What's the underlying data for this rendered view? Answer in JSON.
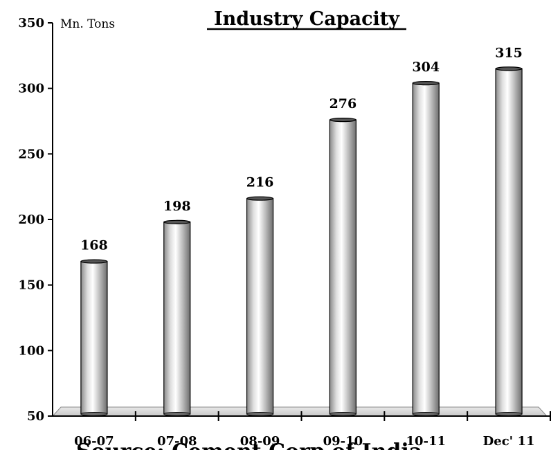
{
  "chart_data": {
    "type": "bar",
    "title": "Industry Capacity",
    "unit_label": "Mn. Tons",
    "categories": [
      "06-07",
      "07-08",
      "08-09",
      "09-10",
      "10-11",
      "Dec' 11"
    ],
    "values": [
      168,
      198,
      216,
      276,
      304,
      315
    ],
    "yticks": [
      50,
      100,
      150,
      200,
      250,
      300,
      350
    ],
    "ylim": [
      50,
      350
    ],
    "xlabel": "",
    "ylabel": "",
    "grid": false,
    "bar_style": "3d-cylinder-gray"
  },
  "footer_text": "Source: Cement Corp of India"
}
